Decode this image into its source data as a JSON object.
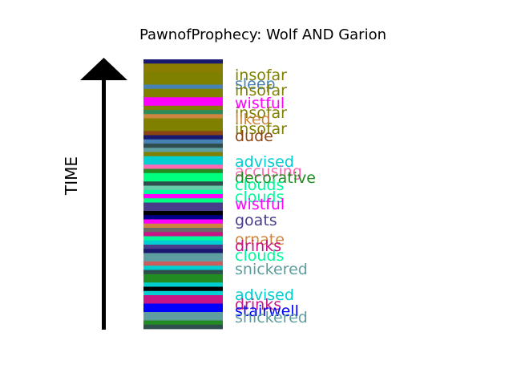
{
  "chart_data": {
    "type": "bar",
    "title": "PawnofProphecy: Wolf AND Garion",
    "ylabel": "TIME",
    "stripe_colors": [
      "#191970",
      "#8b7d00",
      "#8b7d00",
      "#808000",
      "#808000",
      "#808000",
      "#4682b4",
      "#808000",
      "#808000",
      "#ff00ff",
      "#ff00ff",
      "#808000",
      "#2e8b57",
      "#cd853f",
      "#808000",
      "#808000",
      "#808000",
      "#8b4513",
      "#191970",
      "#4682b4",
      "#2f4f4f",
      "#5f9ea0",
      "#808000",
      "#00ced1",
      "#00ced1",
      "#ff69b4",
      "#228b22",
      "#00ff7f",
      "#00ff7f",
      "#2f4f4f",
      "#66cdaa",
      "#00fa9a",
      "#ff00ff",
      "#00ff7f",
      "#483d8b",
      "#483d8b",
      "#000000",
      "#00008b",
      "#ff00ff",
      "#cd853f",
      "#696969",
      "#c71585",
      "#00fa9a",
      "#00ced1",
      "#483d8b",
      "#191970",
      "#5f9ea0",
      "#5f9ea0",
      "#cd5c5c",
      "#00ced1",
      "#2f4f4f",
      "#228b22",
      "#228b22",
      "#00ced1",
      "#000000",
      "#00ced1",
      "#c71585",
      "#c71585",
      "#0000ff",
      "#0000ff",
      "#5f9ea0",
      "#5f9ea0",
      "#228b22",
      "#2f4f4f"
    ],
    "labels": [
      {
        "text": "insofar",
        "color": "#808000"
      },
      {
        "text": "sleep",
        "color": "#4682b4"
      },
      {
        "text": "insofar",
        "color": "#808000"
      },
      {
        "text": "wistful",
        "color": "#ff00ff"
      },
      {
        "text": "insofar",
        "color": "#808000"
      },
      {
        "text": "liked",
        "color": "#cd853f"
      },
      {
        "text": "insofar",
        "color": "#808000"
      },
      {
        "text": "dude",
        "color": "#8b4513"
      },
      {
        "text": "advised",
        "color": "#00ced1"
      },
      {
        "text": "accusing",
        "color": "#ff69b4"
      },
      {
        "text": "decorative",
        "color": "#228b22"
      },
      {
        "text": "clouds",
        "color": "#00fa9a"
      },
      {
        "text": "clouds",
        "color": "#00fa9a"
      },
      {
        "text": "wistful",
        "color": "#ff00ff"
      },
      {
        "text": "goats",
        "color": "#483d8b"
      },
      {
        "text": "ornate",
        "color": "#cd853f"
      },
      {
        "text": "drinks",
        "color": "#c71585"
      },
      {
        "text": "clouds",
        "color": "#00fa9a"
      },
      {
        "text": "snickered",
        "color": "#5f9ea0"
      },
      {
        "text": "advised",
        "color": "#00ced1"
      },
      {
        "text": "drinks",
        "color": "#c71585"
      },
      {
        "text": "stairwell",
        "color": "#0000ff"
      },
      {
        "text": "snickered",
        "color": "#5f9ea0"
      }
    ]
  }
}
